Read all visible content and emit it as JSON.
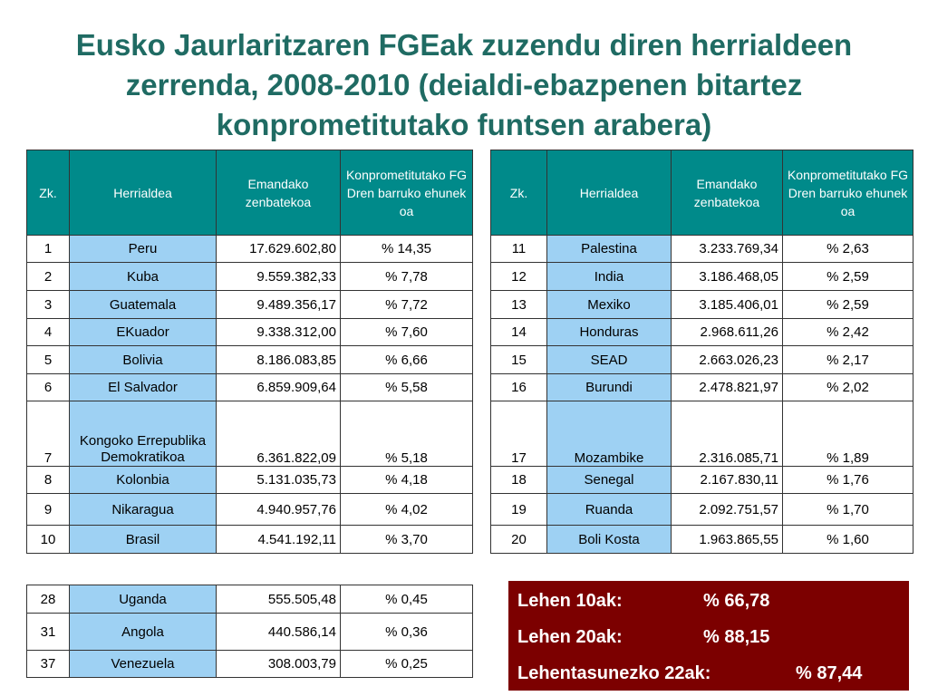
{
  "title": "Eusko Jaurlaritzaren FGEak zuzendu diren herrialdeen zerrenda, 2008-2010 (deialdi-ebazpenen bitartez konprometitutako funtsen arabera)",
  "headers": {
    "zk": "Zk.",
    "herrialdea": "Herrialdea",
    "emandako": "Emandako zenbatekoa",
    "konprometitut": "Konprometitutako FGDren barruko ehunekoa"
  },
  "left_rows": [
    {
      "zk": "1",
      "country": "Peru",
      "amount": "17.629.602,80",
      "pct": "% 14,35"
    },
    {
      "zk": "2",
      "country": "Kuba",
      "amount": "9.559.382,33",
      "pct": "% 7,78"
    },
    {
      "zk": "3",
      "country": "Guatemala",
      "amount": "9.489.356,17",
      "pct": "% 7,72"
    },
    {
      "zk": "4",
      "country": "EKuador",
      "amount": "9.338.312,00",
      "pct": "% 7,60"
    },
    {
      "zk": "5",
      "country": "Bolivia",
      "amount": "8.186.083,85",
      "pct": "% 6,66"
    },
    {
      "zk": "6",
      "country": "El Salvador",
      "amount": "6.859.909,64",
      "pct": "% 5,58"
    },
    {
      "zk": "7",
      "country": "Kongoko Errepublika Demokratikoa",
      "amount": "6.361.822,09",
      "pct": "% 5,18"
    },
    {
      "zk": "8",
      "country": "Kolonbia",
      "amount": "5.131.035,73",
      "pct": "% 4,18"
    },
    {
      "zk": "9",
      "country": "Nikaragua",
      "amount": "4.940.957,76",
      "pct": "% 4,02"
    },
    {
      "zk": "10",
      "country": "Brasil",
      "amount": "4.541.192,11",
      "pct": "% 3,70"
    }
  ],
  "right_rows": [
    {
      "zk": "11",
      "country": "Palestina",
      "amount": "3.233.769,34",
      "pct": "% 2,63"
    },
    {
      "zk": "12",
      "country": "India",
      "amount": "3.186.468,05",
      "pct": "% 2,59"
    },
    {
      "zk": "13",
      "country": "Mexiko",
      "amount": "3.185.406,01",
      "pct": "% 2,59"
    },
    {
      "zk": "14",
      "country": "Honduras",
      "amount": "2.968.611,26",
      "pct": "% 2,42"
    },
    {
      "zk": "15",
      "country": "SEAD",
      "amount": "2.663.026,23",
      "pct": "% 2,17"
    },
    {
      "zk": "16",
      "country": "Burundi",
      "amount": "2.478.821,97",
      "pct": "% 2,02"
    },
    {
      "zk": "17",
      "country": "Mozambike",
      "amount": "2.316.085,71",
      "pct": "% 1,89"
    },
    {
      "zk": "18",
      "country": "Senegal",
      "amount": "2.167.830,11",
      "pct": "% 1,76"
    },
    {
      "zk": "19",
      "country": "Ruanda",
      "amount": "2.092.751,57",
      "pct": "% 1,70"
    },
    {
      "zk": "20",
      "country": "Boli Kosta",
      "amount": "1.963.865,55",
      "pct": "% 1,60"
    }
  ],
  "extra_rows": [
    {
      "zk": "28",
      "country": "Uganda",
      "amount": "555.505,48",
      "pct": "% 0,45"
    },
    {
      "zk": "31",
      "country": "Angola",
      "amount": "440.586,14",
      "pct": "% 0,36"
    },
    {
      "zk": "37",
      "country": "Venezuela",
      "amount": "308.003,79",
      "pct": "% 0,25"
    }
  ],
  "summary": [
    {
      "label": "Lehen 10ak:",
      "value": "% 66,78"
    },
    {
      "label": "Lehen 20ak:",
      "value": "% 88,15"
    },
    {
      "label": "Lehentasunezko 22ak:",
      "value": "% 87,44"
    }
  ],
  "colors": {
    "title": "#1f6b63",
    "header": "#008a8a",
    "country_cell": "#9ed1f3",
    "summary_bg": "#7c0000"
  }
}
